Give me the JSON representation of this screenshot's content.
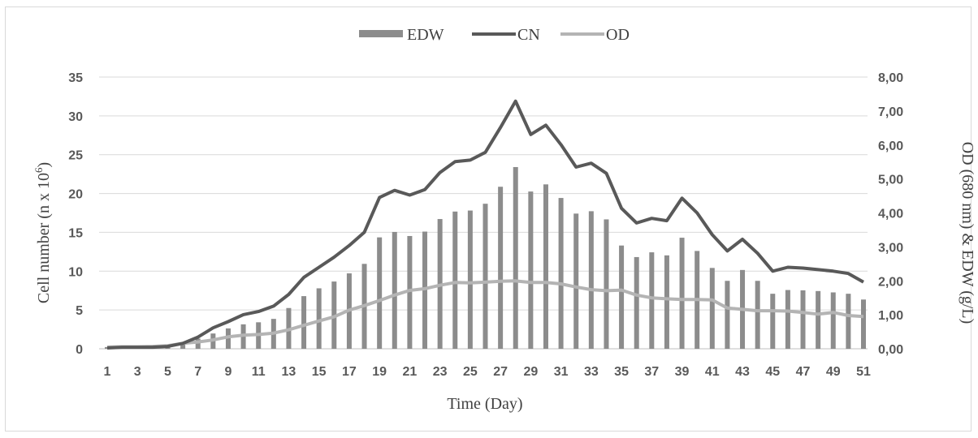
{
  "chart_data": {
    "type": "bar+line",
    "legend_position": "top-center",
    "grid": true,
    "xlabel": "Time (Day)",
    "ylabel_left_main": "Cell number (n x 10",
    "ylabel_left_sup": "6",
    "ylabel_left_end": ")",
    "ylabel_right": "OD (680 nm) & EDW (g/L)",
    "x_tick_labels": [
      "1",
      "3",
      "5",
      "7",
      "9",
      "11",
      "13",
      "15",
      "17",
      "19",
      "21",
      "23",
      "25",
      "27",
      "29",
      "31",
      "33",
      "35",
      "37",
      "39",
      "41",
      "43",
      "45",
      "47",
      "49",
      "51"
    ],
    "y_left_ticks": [
      "0",
      "5",
      "10",
      "15",
      "20",
      "25",
      "30",
      "35"
    ],
    "y_right_ticks": [
      "0,00",
      "1,00",
      "2,00",
      "3,00",
      "4,00",
      "5,00",
      "6,00",
      "7,00",
      "8,00"
    ],
    "ylim_left": [
      0,
      35
    ],
    "ylim_right": [
      0,
      8
    ],
    "x": [
      1,
      2,
      3,
      4,
      5,
      6,
      7,
      8,
      9,
      10,
      11,
      12,
      13,
      14,
      15,
      16,
      17,
      18,
      19,
      20,
      21,
      22,
      23,
      24,
      25,
      26,
      27,
      28,
      29,
      30,
      31,
      32,
      33,
      34,
      35,
      36,
      37,
      38,
      39,
      40,
      41,
      42,
      43,
      44,
      45,
      46,
      47,
      48,
      49,
      50,
      51
    ],
    "series": [
      {
        "name": "EDW",
        "type": "bar",
        "axis": "right",
        "color": "#8c8c8c",
        "values": [
          0.05,
          0.05,
          0.05,
          0.05,
          0.08,
          0.15,
          0.3,
          0.45,
          0.6,
          0.72,
          0.78,
          0.88,
          1.2,
          1.55,
          1.78,
          1.98,
          2.22,
          2.5,
          3.28,
          3.44,
          3.32,
          3.45,
          3.82,
          4.04,
          4.07,
          4.27,
          4.77,
          5.35,
          4.63,
          4.84,
          4.44,
          3.98,
          4.05,
          3.81,
          3.04,
          2.7,
          2.84,
          2.75,
          3.27,
          2.88,
          2.38,
          2.0,
          2.32,
          2.0,
          1.62,
          1.73,
          1.72,
          1.7,
          1.66,
          1.62,
          1.45
        ]
      },
      {
        "name": "CN",
        "type": "line",
        "axis": "left",
        "color": "#595959",
        "values": [
          0.1,
          0.2,
          0.2,
          0.2,
          0.3,
          0.7,
          1.5,
          2.7,
          3.5,
          4.4,
          4.8,
          5.5,
          7.0,
          9.2,
          10.5,
          11.8,
          13.3,
          15.0,
          19.5,
          20.4,
          19.8,
          20.5,
          22.7,
          24.1,
          24.3,
          25.3,
          28.5,
          31.9,
          27.6,
          28.8,
          26.3,
          23.4,
          23.9,
          22.6,
          18.1,
          16.2,
          16.8,
          16.5,
          19.4,
          17.5,
          14.7,
          12.6,
          14.1,
          12.3,
          10.0,
          10.5,
          10.4,
          10.2,
          10.0,
          9.7,
          8.6
        ]
      },
      {
        "name": "OD",
        "type": "line",
        "axis": "right",
        "color": "#b4b4b4",
        "values": [
          0.05,
          0.06,
          0.06,
          0.07,
          0.09,
          0.16,
          0.2,
          0.26,
          0.35,
          0.4,
          0.42,
          0.46,
          0.56,
          0.69,
          0.82,
          0.94,
          1.14,
          1.27,
          1.42,
          1.58,
          1.72,
          1.77,
          1.87,
          1.95,
          1.94,
          1.96,
          1.99,
          2.0,
          1.95,
          1.95,
          1.91,
          1.82,
          1.74,
          1.71,
          1.73,
          1.58,
          1.5,
          1.47,
          1.45,
          1.45,
          1.44,
          1.2,
          1.16,
          1.12,
          1.12,
          1.11,
          1.07,
          1.02,
          1.07,
          0.98,
          0.95
        ]
      }
    ]
  }
}
